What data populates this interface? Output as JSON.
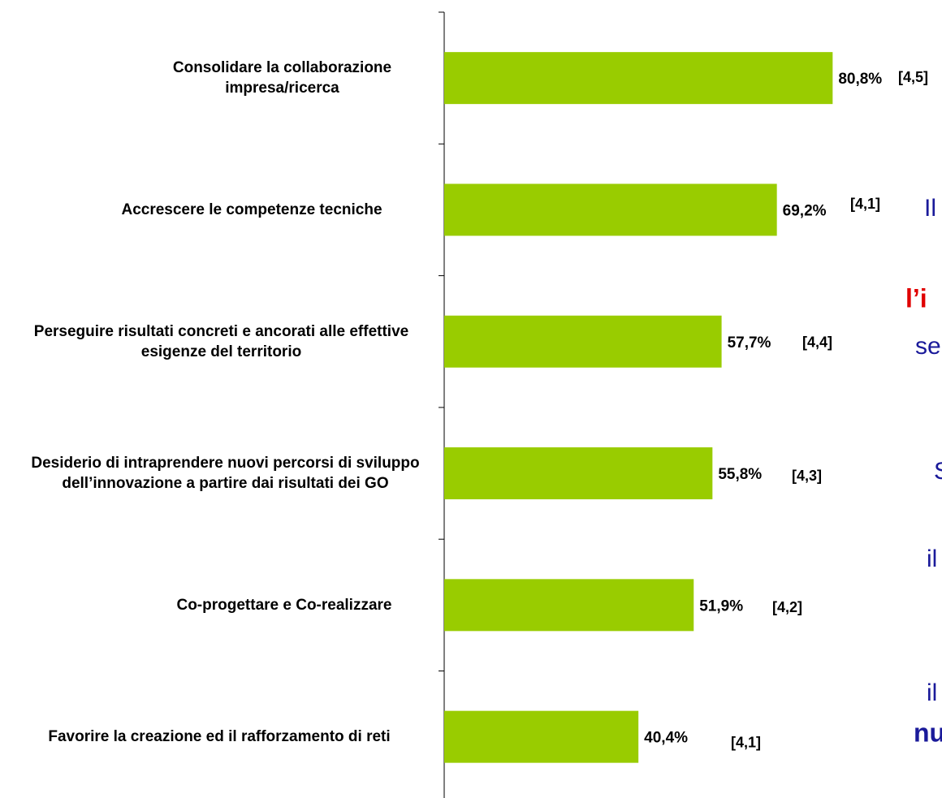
{
  "chart_data": {
    "type": "bar",
    "orientation": "horizontal",
    "categories": [
      "Consolidare la collaborazione impresa/ricerca",
      "Accrescere le competenze tecniche",
      "Perseguire risultati concreti e ancorati alle effettive esigenze del territorio",
      "Desiderio di intraprendere nuovi percorsi di sviluppo dell’innovazione a partire dai risultati dei GO",
      "Co-progettare e Co-realizzare",
      "Favorire la creazione ed il rafforzamento di reti"
    ],
    "values": [
      80.8,
      69.2,
      57.7,
      55.8,
      51.9,
      40.4
    ],
    "value_labels": [
      "80,8%",
      "69,2%",
      "57,7%",
      "55,8%",
      "51,9%",
      "40,4%"
    ],
    "scores": [
      4.5,
      4.1,
      4.4,
      4.3,
      4.2,
      4.1
    ],
    "score_labels": [
      "[4,5]",
      "[4,1]",
      "[4,4]",
      "[4,3]",
      "[4,2]",
      "[4,1]"
    ],
    "color": "#99cc00",
    "xlim": [
      0,
      100
    ],
    "annotations": [
      {
        "text": "Il",
        "color": "#1a1a9a",
        "bold": false
      },
      {
        "text": "l’i",
        "color": "#e00000",
        "bold": true
      },
      {
        "text": "se",
        "color": "#1a1a9a",
        "bold": false
      },
      {
        "text": "S",
        "color": "#1a1a9a",
        "bold": false
      },
      {
        "text": "il",
        "color": "#1a1a9a",
        "bold": false
      },
      {
        "text": "il",
        "color": "#1a1a9a",
        "bold": false
      },
      {
        "text": "nu",
        "color": "#1a1a9a",
        "bold": true
      }
    ]
  }
}
